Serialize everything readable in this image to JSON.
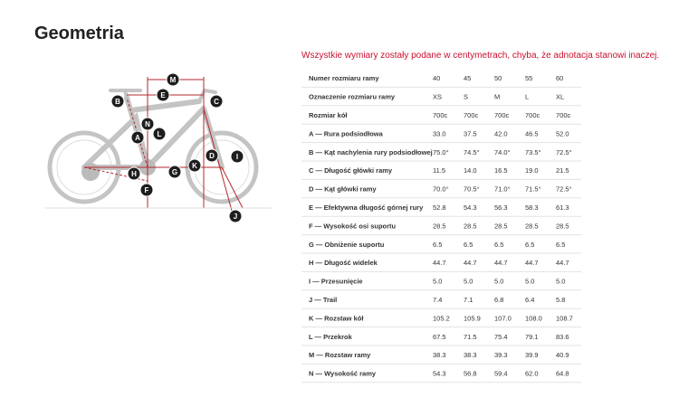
{
  "title": "Geometria",
  "note": "Wszystkie wymiary zostały podane w centymetrach, chyba, że adnotacja stanowi inaczej.",
  "diagram": {
    "labels": [
      "M",
      "E",
      "B",
      "C",
      "N",
      "A",
      "L",
      "D",
      "I",
      "K",
      "H",
      "G",
      "F",
      "J"
    ]
  },
  "table": {
    "rows": [
      [
        "Numer rozmiaru ramy",
        "40",
        "45",
        "50",
        "55",
        "60"
      ],
      [
        "Oznaczenie rozmiaru ramy",
        "XS",
        "S",
        "M",
        "L",
        "XL"
      ],
      [
        "Rozmiar kół",
        "700c",
        "700c",
        "700c",
        "700c",
        "700c"
      ],
      [
        "A — Rura podsiodłowa",
        "33.0",
        "37.5",
        "42.0",
        "46.5",
        "52.0"
      ],
      [
        "B — Kąt nachylenia rury podsiodłowej",
        "75.0°",
        "74.5°",
        "74.0°",
        "73.5°",
        "72.5°"
      ],
      [
        "C — Długość główki ramy",
        "11.5",
        "14.0",
        "16.5",
        "19.0",
        "21.5"
      ],
      [
        "D — Kąt główki ramy",
        "70.0°",
        "70.5°",
        "71.0°",
        "71.5°",
        "72.5°"
      ],
      [
        "E — Efektywna długość górnej rury",
        "52.8",
        "54.3",
        "56.3",
        "58.3",
        "61.3"
      ],
      [
        "F — Wysokość osi suportu",
        "28.5",
        "28.5",
        "28.5",
        "28.5",
        "28.5"
      ],
      [
        "G — Obniżenie suportu",
        "6.5",
        "6.5",
        "6.5",
        "6.5",
        "6.5"
      ],
      [
        "H — Długość widelek",
        "44.7",
        "44.7",
        "44.7",
        "44.7",
        "44.7"
      ],
      [
        "I — Przesunięcie",
        "5.0",
        "5.0",
        "5.0",
        "5.0",
        "5.0"
      ],
      [
        "J — Trail",
        "7.4",
        "7.1",
        "6.8",
        "6.4",
        "5.8"
      ],
      [
        "K — Rozstaw kół",
        "105.2",
        "105.9",
        "107.0",
        "108.0",
        "108.7"
      ],
      [
        "L — Przekrok",
        "67.5",
        "71.5",
        "75.4",
        "79.1",
        "83.6"
      ],
      [
        "M — Rozstaw ramy",
        "38.3",
        "38.3",
        "39.3",
        "39.9",
        "40.9"
      ],
      [
        "N — Wysokość ramy",
        "54.3",
        "56.8",
        "59.4",
        "62.0",
        "64.8"
      ]
    ]
  }
}
